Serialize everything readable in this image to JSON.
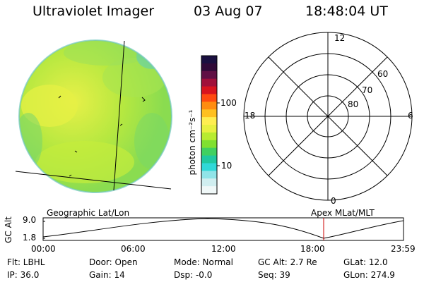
{
  "header": {
    "instrument": "Ultraviolet Imager",
    "date": "03 Aug 07",
    "time": "18:48:04 UT"
  },
  "colorbar": {
    "unit_label": "photon cm⁻²s⁻¹",
    "ticks": [
      "100",
      "10"
    ],
    "colors": [
      "#1a1040",
      "#300a38",
      "#601044",
      "#a0103a",
      "#d8141e",
      "#ff4a10",
      "#ff8c10",
      "#ffc020",
      "#ffee50",
      "#e8f040",
      "#b8ec30",
      "#80e030",
      "#40d060",
      "#20c8a0",
      "#30d8d8",
      "#90e4e8",
      "#d0eef0",
      "#f0f8f8"
    ]
  },
  "image_panel": {
    "fill_colors": [
      "#9ae03c",
      "#c8ec3c",
      "#6cd46c",
      "#e8f048"
    ]
  },
  "polar": {
    "hour_labels": [
      "12",
      "18",
      "6",
      "0"
    ],
    "lat_labels": [
      "60",
      "70",
      "80"
    ]
  },
  "orbit": {
    "y_label": "GC Alt",
    "y_ticks": [
      "9.0",
      "1.8"
    ],
    "left_title": "Geographic Lat/Lon",
    "right_title": "Apex  MLat/MLT",
    "x_ticks": [
      "00:00",
      "06:00",
      "12:00",
      "18:00",
      "23:59"
    ],
    "marker_color": "#cc0000"
  },
  "info": {
    "filter": "Flt: LBHL",
    "ip": "IP: 36.0",
    "door": "Door: Open",
    "gain": "Gain: 14",
    "mode": "Mode: Normal",
    "dsp": "Dsp:   -0.0",
    "gc_alt": "GC Alt: 2.7 Re",
    "seq": "Seq: 39",
    "glat": "GLat:  12.0",
    "glon": "GLon: 274.9"
  }
}
